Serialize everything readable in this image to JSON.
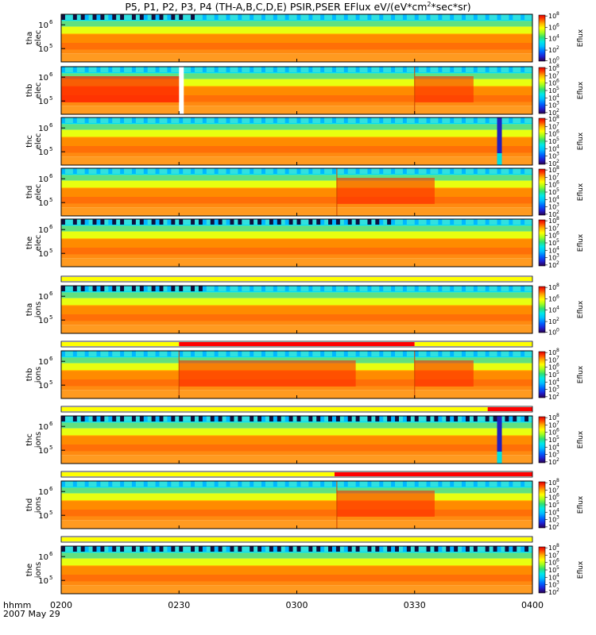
{
  "title": "P5, P1, P2, P3, P4 (TH-A,B,C,D,E) PSIR,PSER EFlux eV/(eV*cm",
  "title_sup": "2",
  "title_tail": "*sec*sr)",
  "footer": {
    "time_label": "hhmm",
    "date_label": "2007 May 29"
  },
  "chart_data": {
    "type": "heatmap",
    "x_ticks": [
      "0200",
      "0230",
      "0300",
      "0330",
      "0400"
    ],
    "x_range": [
      "02:00",
      "04:00"
    ],
    "colorbar_label": "Eflux",
    "colorscale": [
      "#2a004a",
      "#3a0b8a",
      "#2020d0",
      "#0050ff",
      "#00a0ff",
      "#00e8e8",
      "#30e080",
      "#80ff30",
      "#d8ff00",
      "#ffe000",
      "#ffa800",
      "#ff6a00",
      "#ff2a00",
      "#e00000"
    ],
    "panels": [
      {
        "id": "tha-elec",
        "label_top": "tha",
        "label_bottom": "elec",
        "y_ticks": [
          "10",
          "10"
        ],
        "y_exps": [
          "6",
          "5"
        ],
        "cb_ticks": [
          {
            "exp": "8",
            "f": 0.02
          },
          {
            "exp": "6",
            "f": 0.27
          },
          {
            "exp": "4",
            "f": 0.51
          },
          {
            "exp": "2",
            "f": 0.76
          },
          {
            "exp": "0",
            "f": 0.99
          }
        ],
        "events": [],
        "low_noise_until": 0.28
      },
      {
        "id": "thb-elec",
        "label_top": "thb",
        "label_bottom": "elec",
        "y_ticks": [
          "10",
          "10"
        ],
        "y_exps": [
          "6",
          "5"
        ],
        "cb_ticks": [
          {
            "exp": "8",
            "f": 0.02
          },
          {
            "exp": "7",
            "f": 0.18
          },
          {
            "exp": "6",
            "f": 0.34
          },
          {
            "exp": "5",
            "f": 0.5
          },
          {
            "exp": "4",
            "f": 0.66
          },
          {
            "exp": "3",
            "f": 0.82
          },
          {
            "exp": "2",
            "f": 0.98
          }
        ],
        "events": [
          {
            "t": 0.25,
            "kind": "gap"
          },
          {
            "t": 0.75,
            "kind": "edge"
          }
        ],
        "low_noise_until": 0.0
      },
      {
        "id": "thc-elec",
        "label_top": "thc",
        "label_bottom": "elec",
        "y_ticks": [
          "10",
          "10"
        ],
        "y_exps": [
          "6",
          "5"
        ],
        "cb_ticks": [
          {
            "exp": "8",
            "f": 0.02
          },
          {
            "exp": "7",
            "f": 0.18
          },
          {
            "exp": "6",
            "f": 0.34
          },
          {
            "exp": "5",
            "f": 0.5
          },
          {
            "exp": "4",
            "f": 0.66
          },
          {
            "exp": "3",
            "f": 0.82
          },
          {
            "exp": "2",
            "f": 0.98
          }
        ],
        "events": [
          {
            "t": 0.925,
            "kind": "blue"
          }
        ],
        "low_noise_until": 0.0
      },
      {
        "id": "thd-elec",
        "label_top": "thd",
        "label_bottom": "elec",
        "y_ticks": [
          "10",
          "10"
        ],
        "y_exps": [
          "6",
          "5"
        ],
        "cb_ticks": [
          {
            "exp": "8",
            "f": 0.02
          },
          {
            "exp": "7",
            "f": 0.18
          },
          {
            "exp": "6",
            "f": 0.34
          },
          {
            "exp": "5",
            "f": 0.5
          },
          {
            "exp": "4",
            "f": 0.66
          },
          {
            "exp": "3",
            "f": 0.82
          },
          {
            "exp": "2",
            "f": 0.98
          }
        ],
        "events": [
          {
            "t": 0.585,
            "kind": "edge"
          }
        ],
        "low_noise_until": 0.0
      },
      {
        "id": "the-elec",
        "label_top": "the",
        "label_bottom": "elec",
        "y_ticks": [
          "10",
          "10"
        ],
        "y_exps": [
          "6",
          "5"
        ],
        "cb_ticks": [
          {
            "exp": "8",
            "f": 0.02
          },
          {
            "exp": "7",
            "f": 0.18
          },
          {
            "exp": "6",
            "f": 0.34
          },
          {
            "exp": "5",
            "f": 0.5
          },
          {
            "exp": "4",
            "f": 0.66
          },
          {
            "exp": "3",
            "f": 0.82
          },
          {
            "exp": "2",
            "f": 0.98
          }
        ],
        "events": [],
        "low_noise_until": 0.7
      },
      {
        "id": "tha-ions",
        "label_top": "tha",
        "label_bottom": "ions",
        "y_ticks": [
          "10",
          "10"
        ],
        "y_exps": [
          "6",
          "5"
        ],
        "cb_ticks": [
          {
            "exp": "8",
            "f": 0.02
          },
          {
            "exp": "6",
            "f": 0.27
          },
          {
            "exp": "4",
            "f": 0.51
          },
          {
            "exp": "2",
            "f": 0.76
          },
          {
            "exp": "0",
            "f": 0.99
          }
        ],
        "events": [],
        "low_noise_until": 0.3
      },
      {
        "id": "thb-ions",
        "label_top": "thb",
        "label_bottom": "ions",
        "y_ticks": [
          "10",
          "10"
        ],
        "y_exps": [
          "6",
          "5"
        ],
        "cb_ticks": [
          {
            "exp": "8",
            "f": 0.02
          },
          {
            "exp": "7",
            "f": 0.18
          },
          {
            "exp": "6",
            "f": 0.34
          },
          {
            "exp": "5",
            "f": 0.5
          },
          {
            "exp": "4",
            "f": 0.66
          },
          {
            "exp": "3",
            "f": 0.82
          },
          {
            "exp": "2",
            "f": 0.98
          }
        ],
        "events": [
          {
            "t": 0.25,
            "kind": "edge"
          },
          {
            "t": 0.75,
            "kind": "edge"
          }
        ],
        "low_noise_until": 0.0
      },
      {
        "id": "thc-ions",
        "label_top": "thc",
        "label_bottom": "ions",
        "y_ticks": [
          "10",
          "10"
        ],
        "y_exps": [
          "6",
          "5"
        ],
        "cb_ticks": [
          {
            "exp": "8",
            "f": 0.02
          },
          {
            "exp": "7",
            "f": 0.18
          },
          {
            "exp": "6",
            "f": 0.34
          },
          {
            "exp": "5",
            "f": 0.5
          },
          {
            "exp": "4",
            "f": 0.66
          },
          {
            "exp": "3",
            "f": 0.82
          },
          {
            "exp": "2",
            "f": 0.98
          }
        ],
        "events": [
          {
            "t": 0.925,
            "kind": "blue"
          }
        ],
        "low_noise_until": 1.0
      },
      {
        "id": "thd-ions",
        "label_top": "thd",
        "label_bottom": "ions",
        "y_ticks": [
          "10",
          "10"
        ],
        "y_exps": [
          "6",
          "5"
        ],
        "cb_ticks": [
          {
            "exp": "8",
            "f": 0.02
          },
          {
            "exp": "7",
            "f": 0.18
          },
          {
            "exp": "6",
            "f": 0.34
          },
          {
            "exp": "5",
            "f": 0.5
          },
          {
            "exp": "4",
            "f": 0.66
          },
          {
            "exp": "3",
            "f": 0.82
          },
          {
            "exp": "2",
            "f": 0.98
          }
        ],
        "events": [
          {
            "t": 0.585,
            "kind": "edge"
          }
        ],
        "low_noise_until": 0.0
      },
      {
        "id": "the-ions",
        "label_top": "the",
        "label_bottom": "ions",
        "y_ticks": [
          "10",
          "10"
        ],
        "y_exps": [
          "6",
          "5"
        ],
        "cb_ticks": [
          {
            "exp": "8",
            "f": 0.02
          },
          {
            "exp": "7",
            "f": 0.18
          },
          {
            "exp": "6",
            "f": 0.34
          },
          {
            "exp": "5",
            "f": 0.5
          },
          {
            "exp": "4",
            "f": 0.66
          },
          {
            "exp": "3",
            "f": 0.82
          },
          {
            "exp": "2",
            "f": 0.98
          }
        ],
        "events": [],
        "low_noise_until": 1.0
      }
    ],
    "mode_bars": [
      {
        "segments": [
          {
            "from": 0.0,
            "to": 1.0,
            "color": "#ffff00"
          }
        ]
      },
      {
        "segments": [
          {
            "from": 0.0,
            "to": 0.25,
            "color": "#ffff00"
          },
          {
            "from": 0.25,
            "to": 0.75,
            "color": "#ff0000"
          },
          {
            "from": 0.75,
            "to": 1.0,
            "color": "#ffff00"
          }
        ]
      },
      {
        "segments": [
          {
            "from": 0.0,
            "to": 0.905,
            "color": "#ffff00"
          },
          {
            "from": 0.905,
            "to": 1.0,
            "color": "#ff0000"
          }
        ]
      },
      {
        "segments": [
          {
            "from": 0.0,
            "to": 0.58,
            "color": "#ffff00"
          },
          {
            "from": 0.58,
            "to": 1.0,
            "color": "#ff0000"
          }
        ]
      },
      {
        "segments": [
          {
            "from": 0.0,
            "to": 1.0,
            "color": "#ffff00"
          }
        ]
      }
    ]
  }
}
